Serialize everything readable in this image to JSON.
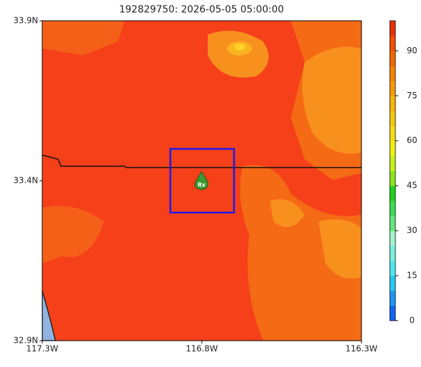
{
  "title": "192829750: 2026-05-05 05:00:00",
  "map": {
    "xticks": [
      "117.3W",
      "116.8W",
      "116.3W"
    ],
    "yticks": [
      "33.9N",
      "33.4N",
      "32.9N"
    ]
  },
  "marker": {
    "label": "Rx"
  },
  "colorbar": {
    "range": [
      0,
      100
    ],
    "ticks": [
      0,
      15,
      30,
      45,
      60,
      75,
      90
    ],
    "colors": [
      "#1464f0",
      "#1e96f5",
      "#28c8f0",
      "#50e6f0",
      "#78f0dc",
      "#a0f5c8",
      "#64e678",
      "#3cdc50",
      "#1ed21e",
      "#8ce61e",
      "#c8f01e",
      "#f0f014",
      "#f5dc14",
      "#f5c80f",
      "#f5b40a",
      "#f59b0a",
      "#f58205",
      "#f06905",
      "#f05005",
      "#e6320a"
    ]
  }
}
